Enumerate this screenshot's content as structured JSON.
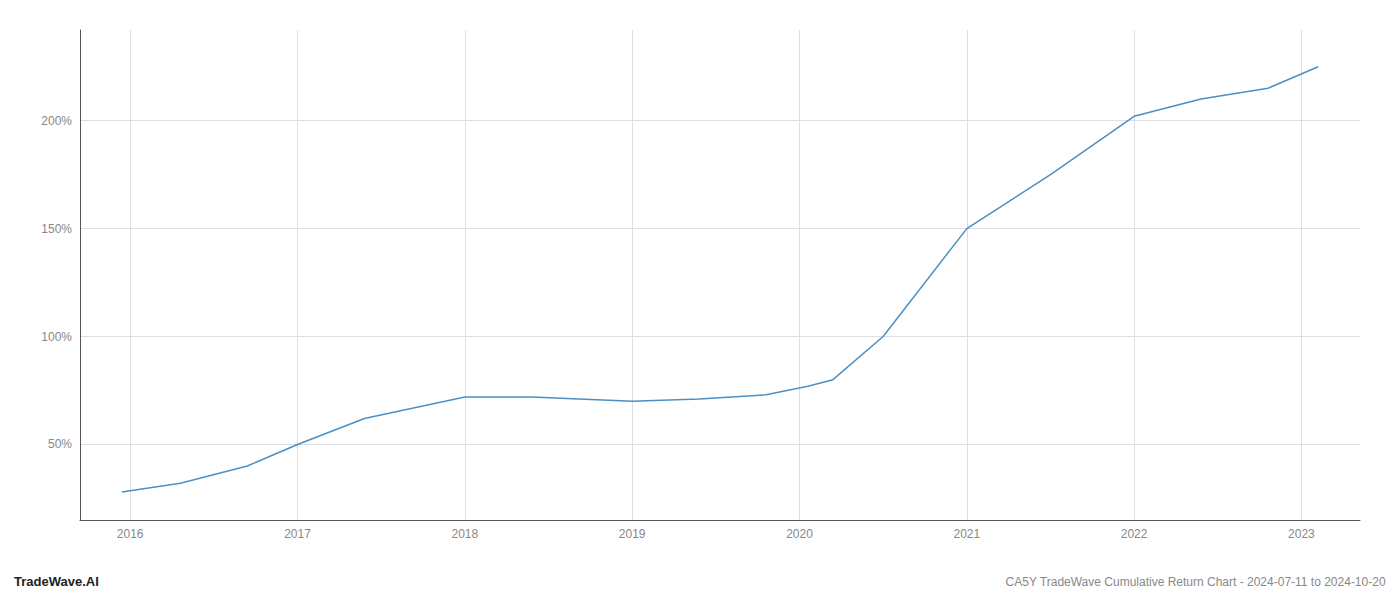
{
  "chart_data": {
    "type": "line",
    "x": [
      2015.95,
      2016.3,
      2016.7,
      2017.0,
      2017.4,
      2018.0,
      2018.4,
      2019.0,
      2019.4,
      2019.8,
      2020.05,
      2020.2,
      2020.5,
      2021.0,
      2021.5,
      2022.0,
      2022.4,
      2022.8,
      2023.1
    ],
    "values": [
      28,
      32,
      40,
      50,
      62,
      72,
      72,
      70,
      71,
      73,
      77,
      80,
      100,
      150,
      175,
      202,
      210,
      215,
      225
    ],
    "color": "#4a90c4",
    "xlim": [
      2015.7,
      2023.35
    ],
    "ylim": [
      15,
      242
    ],
    "xticks": [
      2016,
      2017,
      2018,
      2019,
      2020,
      2021,
      2022,
      2023
    ],
    "yticks": [
      {
        "value": 50,
        "label": "50%"
      },
      {
        "value": 100,
        "label": "100%"
      },
      {
        "value": 150,
        "label": "150%"
      },
      {
        "value": 200,
        "label": "200%"
      }
    ],
    "grid": true,
    "annotations": [
      "TradeWave.AI",
      "CA5Y TradeWave Cumulative Return Chart - 2024-07-11 to 2024-10-20"
    ]
  }
}
